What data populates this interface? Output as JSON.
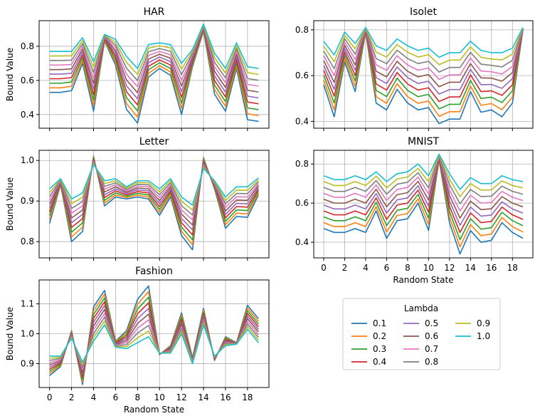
{
  "figure": {
    "legend": {
      "title": "Lambda",
      "placement": "lower-right (empty sixth panel)"
    }
  },
  "chart_data": [
    {
      "type": "line",
      "title": "HAR",
      "ylabel": "Bound Value",
      "xlabel": "",
      "ylim": [
        0.32,
        0.95
      ],
      "xlim": [
        -0.95,
        19.95
      ],
      "yticks": [
        0.4,
        0.6,
        0.8
      ],
      "ytick_labels": [
        "0.4",
        "0.6",
        "0.8"
      ],
      "xticks": [
        0,
        2,
        4,
        6,
        8,
        10,
        12,
        14,
        16,
        18
      ],
      "xtick_labels": [],
      "grid": true,
      "base_values": [
        0.53,
        0.53,
        0.54,
        0.7,
        0.42,
        0.83,
        0.69,
        0.43,
        0.35,
        0.62,
        0.67,
        0.63,
        0.4,
        0.68,
        0.89,
        0.52,
        0.42,
        0.67,
        0.37,
        0.36
      ],
      "top_values": [
        0.77,
        0.77,
        0.77,
        0.85,
        0.71,
        0.87,
        0.84,
        0.74,
        0.67,
        0.81,
        0.82,
        0.81,
        0.7,
        0.78,
        0.93,
        0.76,
        0.67,
        0.82,
        0.68,
        0.67
      ]
    },
    {
      "type": "line",
      "title": "Isolet",
      "ylabel": "",
      "xlabel": "",
      "ylim": [
        0.37,
        0.84
      ],
      "xlim": [
        -0.95,
        19.95
      ],
      "yticks": [
        0.4,
        0.6,
        0.8
      ],
      "ytick_labels": [
        "0.4",
        "0.6",
        "0.8"
      ],
      "xticks": [
        0,
        2,
        4,
        6,
        8,
        10,
        12,
        14,
        16,
        18
      ],
      "xtick_labels": [],
      "grid": true,
      "base_values": [
        0.56,
        0.42,
        0.66,
        0.53,
        0.79,
        0.48,
        0.45,
        0.54,
        0.48,
        0.45,
        0.46,
        0.39,
        0.41,
        0.41,
        0.53,
        0.44,
        0.45,
        0.42,
        0.48,
        0.8
      ],
      "top_values": [
        0.75,
        0.69,
        0.79,
        0.74,
        0.81,
        0.73,
        0.71,
        0.76,
        0.73,
        0.71,
        0.72,
        0.68,
        0.7,
        0.7,
        0.75,
        0.71,
        0.7,
        0.7,
        0.72,
        0.81
      ]
    },
    {
      "type": "line",
      "title": "Letter",
      "ylabel": "Bound Value",
      "xlabel": "",
      "ylim": [
        0.76,
        1.025
      ],
      "xlim": [
        -0.95,
        19.95
      ],
      "yticks": [
        0.8,
        0.9,
        1.0
      ],
      "ytick_labels": [
        "0.8",
        "0.9",
        "1.0"
      ],
      "xticks": [
        0,
        2,
        4,
        6,
        8,
        10,
        12,
        14,
        16,
        18
      ],
      "xtick_labels": [],
      "grid": true,
      "base_values": [
        0.845,
        0.94,
        0.8,
        0.825,
        1.01,
        0.888,
        0.91,
        0.905,
        0.91,
        0.905,
        0.865,
        0.91,
        0.815,
        0.78,
        1.007,
        0.93,
        0.833,
        0.862,
        0.86,
        0.915
      ],
      "top_values": [
        0.93,
        0.955,
        0.905,
        0.92,
        0.99,
        0.95,
        0.955,
        0.935,
        0.95,
        0.95,
        0.93,
        0.955,
        0.91,
        0.89,
        0.98,
        0.95,
        0.91,
        0.935,
        0.935,
        0.957
      ]
    },
    {
      "type": "line",
      "title": "MNIST",
      "ylabel": "",
      "xlabel": "Random State",
      "ylim": [
        0.32,
        0.87
      ],
      "xlim": [
        -0.95,
        19.95
      ],
      "yticks": [
        0.4,
        0.6,
        0.8
      ],
      "ytick_labels": [
        "0.4",
        "0.6",
        "0.8"
      ],
      "xticks": [
        0,
        2,
        4,
        6,
        8,
        10,
        12,
        14,
        16,
        18
      ],
      "xtick_labels": [
        "0",
        "2",
        "4",
        "6",
        "8",
        "10",
        "12",
        "14",
        "16",
        "18"
      ],
      "grid": true,
      "base_values": [
        0.47,
        0.45,
        0.45,
        0.47,
        0.45,
        0.56,
        0.42,
        0.51,
        0.52,
        0.6,
        0.46,
        0.82,
        0.5,
        0.34,
        0.46,
        0.4,
        0.41,
        0.5,
        0.45,
        0.42
      ],
      "top_values": [
        0.74,
        0.72,
        0.72,
        0.74,
        0.72,
        0.76,
        0.71,
        0.75,
        0.76,
        0.8,
        0.74,
        0.85,
        0.75,
        0.67,
        0.73,
        0.7,
        0.7,
        0.74,
        0.72,
        0.71
      ]
    },
    {
      "type": "line",
      "title": "Fashion",
      "ylabel": "Bound Value",
      "xlabel": "Random State",
      "ylim": [
        0.82,
        1.18
      ],
      "xlim": [
        -0.95,
        19.95
      ],
      "yticks": [
        0.9,
        1.0,
        1.1
      ],
      "ytick_labels": [
        "0.9",
        "1.0",
        "1.1"
      ],
      "xticks": [
        0,
        2,
        4,
        6,
        8,
        10,
        12,
        14,
        16,
        18
      ],
      "xtick_labels": [
        "0",
        "2",
        "4",
        "6",
        "8",
        "10",
        "12",
        "14",
        "16",
        "18"
      ],
      "grid": true,
      "base_values": [
        0.86,
        0.89,
        1.01,
        0.83,
        1.09,
        1.145,
        0.975,
        1.01,
        1.115,
        1.16,
        0.93,
        0.96,
        1.07,
        0.92,
        1.085,
        0.91,
        0.99,
        0.97,
        1.095,
        1.05
      ],
      "top_values": [
        0.925,
        0.925,
        0.985,
        0.905,
        0.975,
        1.03,
        0.955,
        0.95,
        0.97,
        0.99,
        0.935,
        0.935,
        1.0,
        0.9,
        1.03,
        0.925,
        0.96,
        0.965,
        1.015,
        0.97
      ]
    }
  ],
  "series": [
    {
      "name": "0.1",
      "lambda": 0.1,
      "color": "#1f77b4"
    },
    {
      "name": "0.2",
      "lambda": 0.2,
      "color": "#ff7f0e"
    },
    {
      "name": "0.3",
      "lambda": 0.3,
      "color": "#2ca02c"
    },
    {
      "name": "0.4",
      "lambda": 0.4,
      "color": "#d62728"
    },
    {
      "name": "0.5",
      "lambda": 0.5,
      "color": "#9467bd"
    },
    {
      "name": "0.6",
      "lambda": 0.6,
      "color": "#8c564b"
    },
    {
      "name": "0.7",
      "lambda": 0.7,
      "color": "#e377c2"
    },
    {
      "name": "0.8",
      "lambda": 0.8,
      "color": "#7f7f7f"
    },
    {
      "name": "0.9",
      "lambda": 0.9,
      "color": "#bcbd22"
    },
    {
      "name": "1.0",
      "lambda": 1.0,
      "color": "#17becf"
    }
  ]
}
